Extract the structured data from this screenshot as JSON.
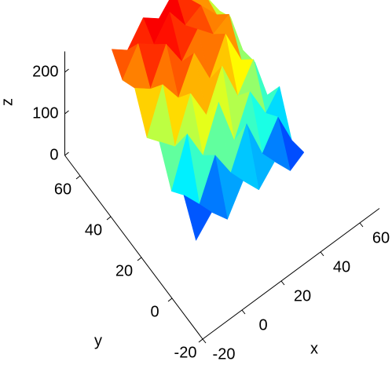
{
  "chart_data": {
    "type": "surface",
    "xlabel": "x",
    "ylabel": "y",
    "zlabel": "z",
    "xlim": [
      -20,
      70
    ],
    "ylim": [
      -20,
      70
    ],
    "zlim": [
      0,
      250
    ],
    "xticks": [
      -20,
      0,
      20,
      40,
      60
    ],
    "yticks": [
      -20,
      0,
      20,
      40,
      60
    ],
    "zticks": [
      0,
      100,
      200
    ],
    "colormap": "jet",
    "x": [
      0,
      8,
      16,
      24,
      32,
      40,
      48,
      55
    ],
    "y": [
      10,
      18,
      26,
      34,
      42,
      50,
      58,
      65
    ],
    "z": [
      [
        20,
        60,
        15,
        80,
        30,
        70,
        20,
        40
      ],
      [
        90,
        40,
        130,
        60,
        150,
        50,
        110,
        30
      ],
      [
        60,
        170,
        90,
        190,
        70,
        160,
        80,
        120
      ],
      [
        140,
        100,
        200,
        120,
        210,
        110,
        170,
        60
      ],
      [
        110,
        210,
        150,
        230,
        140,
        220,
        130,
        100
      ],
      [
        190,
        160,
        240,
        170,
        220,
        180,
        200,
        90
      ],
      [
        170,
        230,
        200,
        250,
        190,
        210,
        160,
        130
      ],
      [
        210,
        180,
        230,
        200,
        240,
        190,
        170,
        110
      ]
    ]
  }
}
